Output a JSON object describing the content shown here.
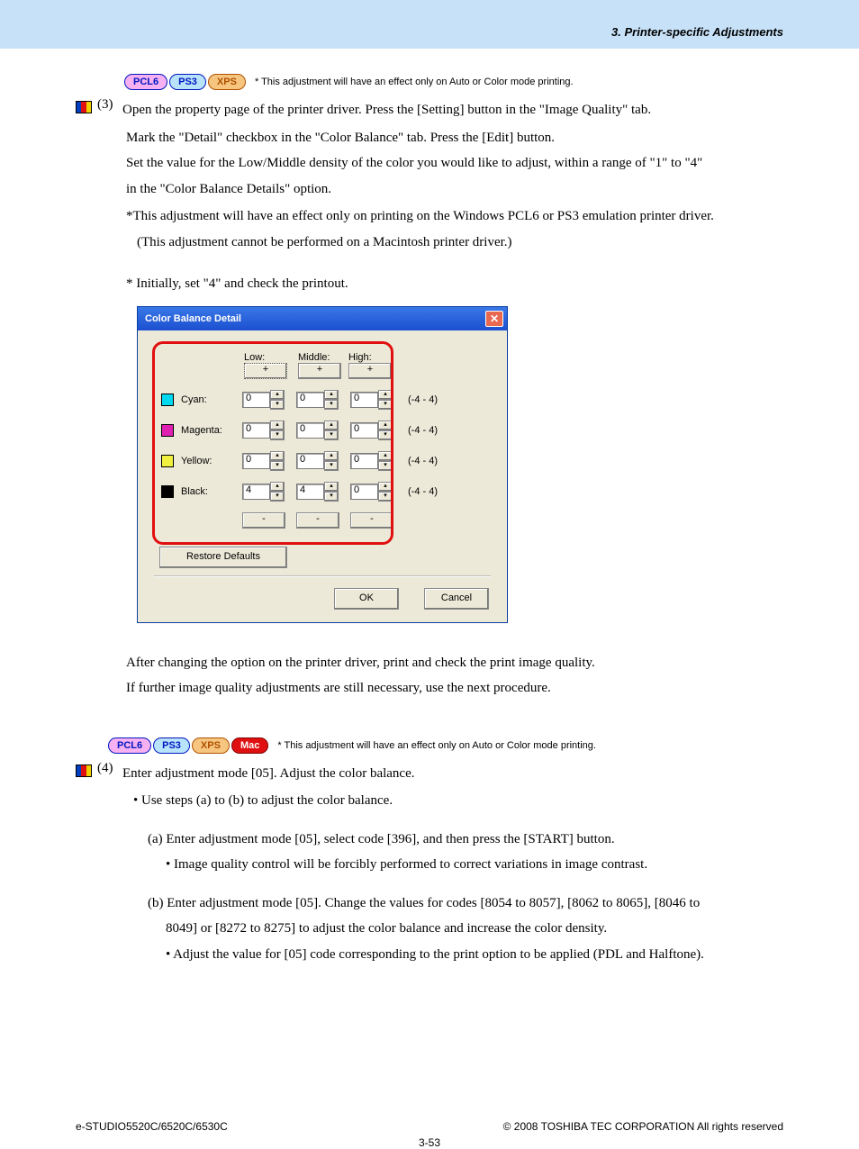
{
  "header": {
    "section_title": "3. Printer-specific Adjustments"
  },
  "badges1": {
    "pcl6": {
      "text": "PCL6",
      "bg": "#f7b0f1",
      "border": "#0018c0",
      "color": "#0018c0"
    },
    "ps3": {
      "text": "PS3",
      "bg": "#b8e3fb",
      "border": "#0018c0",
      "color": "#0018c0"
    },
    "xps": {
      "text": "XPS",
      "bg": "#f6c680",
      "border": "#b05000",
      "color": "#b05000"
    },
    "note": "* This adjustment will have an effect only on Auto or Color mode printing."
  },
  "step3": {
    "num": "(3)",
    "l1": "Open the property page of the printer driver.  Press the [Setting] button in the \"Image Quality\" tab.",
    "l2": "Mark the \"Detail\" checkbox in the \"Color Balance\" tab.  Press the [Edit] button.",
    "l3": "Set the value for the Low/Middle density of the color you would like to adjust, within a range of \"1\" to \"4\"",
    "l4": "in the \"Color Balance Details\" option.",
    "l5": "*This adjustment will have an effect only on printing on the Windows PCL6 or PS3 emulation printer driver.",
    "l6": "(This adjustment cannot be performed on a Macintosh printer driver.)",
    "l7": "* Initially, set \"4\" and check the printout."
  },
  "dialog": {
    "title": "Color Balance Detail",
    "cols": {
      "low": "Low:",
      "mid": "Middle:",
      "high": "High:"
    },
    "plus": "+",
    "minus": "-",
    "range": "(-4 - 4)",
    "rows": [
      {
        "label": "Cyan:",
        "color": "#00d8f0",
        "low": "0",
        "mid": "0",
        "high": "0"
      },
      {
        "label": "Magenta:",
        "color": "#e020b0",
        "low": "0",
        "mid": "0",
        "high": "0"
      },
      {
        "label": "Yellow:",
        "color": "#f0f040",
        "low": "0",
        "mid": "0",
        "high": "0"
      },
      {
        "label": "Black:",
        "color": "#000000",
        "low": "4",
        "mid": "4",
        "high": "0"
      }
    ],
    "restore": "Restore Defaults",
    "ok": "OK",
    "cancel": "Cancel"
  },
  "after_dialog": {
    "l1": "After changing the option on the printer driver, print and check the print image quality.",
    "l2": "If further image quality adjustments are still necessary, use the next procedure."
  },
  "badges2": {
    "pcl6": {
      "text": "PCL6",
      "bg": "#f7b0f1",
      "border": "#0018c0",
      "color": "#0018c0"
    },
    "ps3": {
      "text": "PS3",
      "bg": "#b8e3fb",
      "border": "#0018c0",
      "color": "#0018c0"
    },
    "xps": {
      "text": "XPS",
      "bg": "#f6c680",
      "border": "#b05000",
      "color": "#b05000"
    },
    "mac": {
      "text": "Mac",
      "bg": "#e01010",
      "border": "#800000",
      "color": "#ffffff"
    },
    "note": "* This adjustment will have an effect only on Auto or Color mode printing."
  },
  "step4": {
    "num": "(4)",
    "l1": "Enter adjustment mode [05].  Adjust the color balance.",
    "l2": "• Use steps (a) to (b) to adjust the color balance.",
    "a": "(a) Enter adjustment mode [05], select code [396], and then press the [START] button.",
    "a1": "• Image quality control will be forcibly performed to correct variations in image contrast.",
    "b": "(b) Enter adjustment mode [05].  Change the values for codes [8054 to 8057], [8062 to 8065], [8046 to",
    "b2": "8049] or [8272 to 8275] to adjust the color balance and increase the color density.",
    "b3": "•  Adjust the value for [05] code corresponding to the print option to be applied (PDL and Halftone)."
  },
  "footer": {
    "left": "e-STUDIO5520C/6520C/6530C",
    "right": "© 2008 TOSHIBA TEC CORPORATION All rights reserved",
    "page": "3-53"
  },
  "stripe_colors": [
    "#0040c0",
    "#e01010",
    "#f0d000"
  ]
}
